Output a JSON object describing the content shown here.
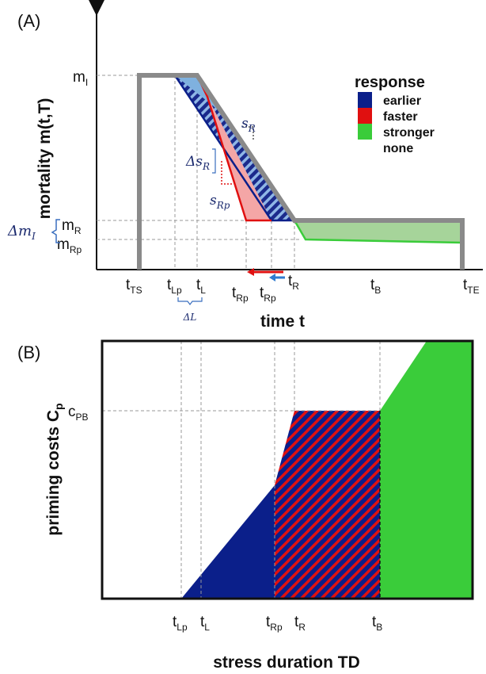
{
  "panel_a": {
    "panel_label": "(A)",
    "ylabel": "mortality m(t,T)",
    "xlabel": "time t",
    "legend": {
      "title": "response",
      "items": [
        {
          "label": "earlier",
          "color": "#0b1f8a"
        },
        {
          "label": "faster",
          "color": "#e01010"
        },
        {
          "label": "stronger",
          "color": "#3acc3a"
        },
        {
          "label": "none",
          "color": null
        }
      ]
    },
    "y_labels": {
      "mI": {
        "main": "m",
        "sub": "I"
      },
      "mR": {
        "main": "m",
        "sub": "R"
      },
      "mRp": {
        "main": "m",
        "sub": "Rp"
      },
      "delta_m": {
        "main": "Δm",
        "sub": "I"
      }
    },
    "x_labels": {
      "tTS": {
        "main": "t",
        "sub": "TS"
      },
      "tLp": {
        "main": "t",
        "sub": "Lp"
      },
      "tL": {
        "main": "t",
        "sub": "L"
      },
      "tRp_red": {
        "main": "t",
        "sub": "Rp"
      },
      "tRp_blue": {
        "main": "t",
        "sub": "Rp"
      },
      "tR": {
        "main": "t",
        "sub": "R"
      },
      "tB": {
        "main": "t",
        "sub": "B"
      },
      "tTE": {
        "main": "t",
        "sub": "TE"
      },
      "deltaL": "ΔL"
    },
    "slope_labels": {
      "sR": {
        "main": "s",
        "sub": "R"
      },
      "delta_sR": {
        "main": "Δs",
        "sub": "R"
      },
      "sRp": {
        "main": "s",
        "sub": "Rp"
      }
    }
  },
  "panel_b": {
    "panel_label": "(B)",
    "ylabel": {
      "main": "priming costs C",
      "sub": "p"
    },
    "xlabel": "stress duration TD",
    "y_labels": {
      "cPB": {
        "main": "c",
        "sub": "PB"
      }
    },
    "x_labels": {
      "tLp": {
        "main": "t",
        "sub": "Lp"
      },
      "tL": {
        "main": "t",
        "sub": "L"
      },
      "tRp": {
        "main": "t",
        "sub": "Rp"
      },
      "tR": {
        "main": "t",
        "sub": "R"
      },
      "tB": {
        "main": "t",
        "sub": "B"
      }
    }
  },
  "colors": {
    "earlier": "#0b1f8a",
    "faster": "#e01010",
    "stronger": "#3acc3a",
    "curve": "#8a8a8a",
    "light_blue": "#7fb1df",
    "light_red": "#f4a6a6",
    "light_green": "#a6d49a"
  }
}
